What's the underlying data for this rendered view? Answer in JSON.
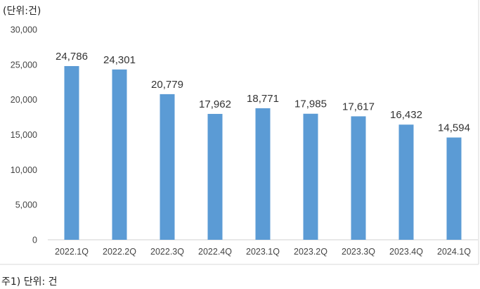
{
  "chart_data": {
    "type": "bar",
    "unit_label": "(단위:건)",
    "categories": [
      "2022.1Q",
      "2022.2Q",
      "2022.3Q",
      "2022.4Q",
      "2023.1Q",
      "2023.2Q",
      "2023.3Q",
      "2023.4Q",
      "2024.1Q"
    ],
    "values": [
      24786,
      24301,
      20779,
      17962,
      18771,
      17985,
      17617,
      16432,
      14594
    ],
    "value_labels": [
      "24,786",
      "24,301",
      "20,779",
      "17,962",
      "18,771",
      "17,985",
      "17,617",
      "16,432",
      "14,594"
    ],
    "yticks": [
      0,
      5000,
      10000,
      15000,
      20000,
      25000,
      30000
    ],
    "ytick_labels": [
      "0",
      "5,000",
      "10,000",
      "15,000",
      "20,000",
      "25,000",
      "30,000"
    ],
    "ylim": [
      0,
      30000
    ],
    "grid": false,
    "legend": "none",
    "bar_color": "#5b9bd5"
  },
  "footnote": "주1) 단위: 건"
}
